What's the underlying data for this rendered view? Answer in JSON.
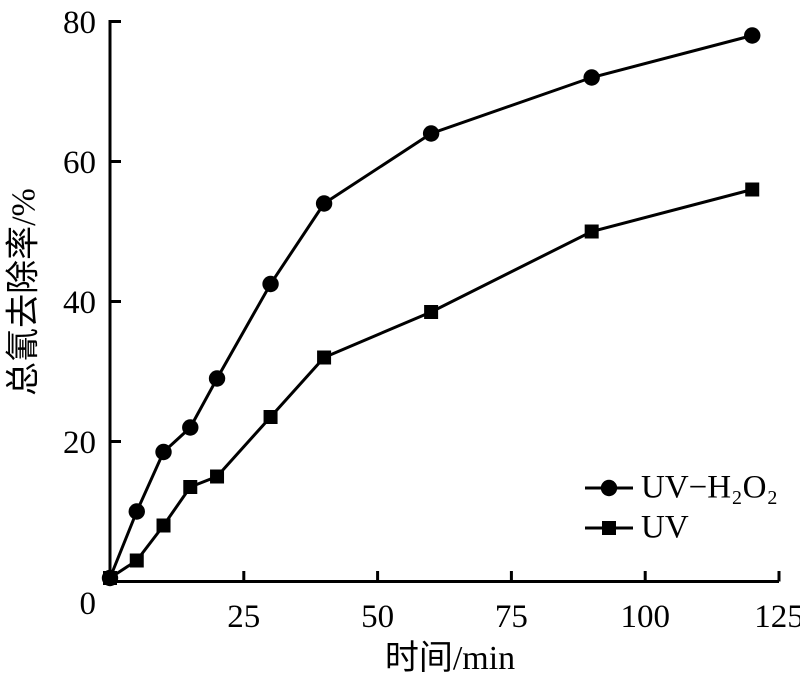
{
  "figure": {
    "background": "#ffffff",
    "ink": "#000000"
  },
  "chart_data": {
    "type": "line",
    "title": "",
    "xlabel": "时间/min",
    "ylabel": "总氰去除率/%",
    "xlim": [
      0,
      125
    ],
    "ylim": [
      0,
      80
    ],
    "x_ticks": [
      25,
      50,
      75,
      100,
      125
    ],
    "y_ticks": [
      20,
      40,
      60,
      80
    ],
    "origin_label": "0",
    "grid": false,
    "legend_position": "inside-lower-right",
    "x": [
      0,
      5,
      10,
      15,
      20,
      30,
      40,
      60,
      90,
      120
    ],
    "series": [
      {
        "name": "UV−H₂O₂",
        "marker": "circle",
        "color": "#000000",
        "values": [
          0.5,
          10,
          18.5,
          22,
          29,
          42.5,
          54,
          64,
          72,
          78
        ]
      },
      {
        "name": "UV",
        "marker": "square",
        "color": "#000000",
        "values": [
          0.5,
          3,
          8,
          13.5,
          15,
          23.5,
          32,
          38.5,
          50,
          56
        ]
      }
    ]
  }
}
